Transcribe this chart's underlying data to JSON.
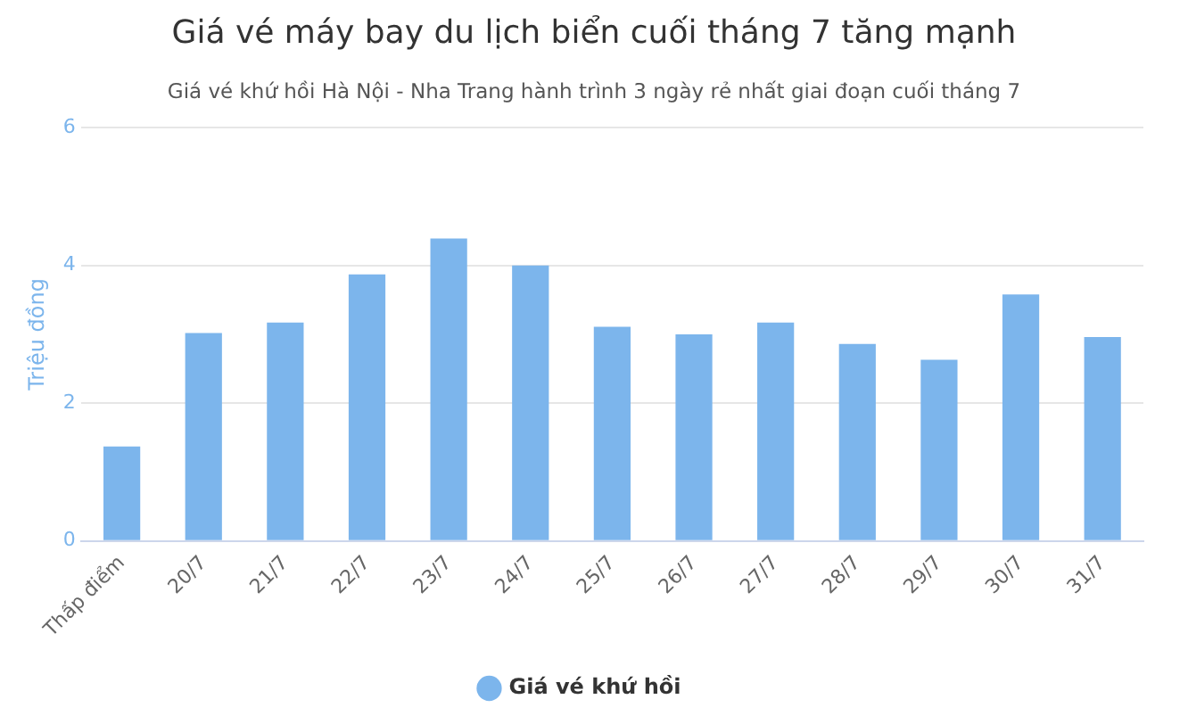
{
  "chart_data": {
    "type": "bar",
    "title": "Giá vé máy bay du lịch biển cuối tháng 7 tăng mạnh",
    "subtitle": "Giá vé khứ hồi Hà Nội - Nha Trang hành trình 3 ngày rẻ nhất giai đoạn cuối tháng 7",
    "ylabel": "Triệu đồng",
    "categories": [
      "Thấp điểm",
      "20/7",
      "21/7",
      "22/7",
      "23/7",
      "24/7",
      "25/7",
      "26/7",
      "27/7",
      "28/7",
      "29/7",
      "30/7",
      "31/7"
    ],
    "series": [
      {
        "name": "Giá vé khứ hồi",
        "color": "#7cb5ec",
        "values": [
          1.37,
          3.02,
          3.17,
          3.87,
          4.39,
          4.0,
          3.11,
          3.0,
          3.17,
          2.86,
          2.63,
          3.58,
          2.96
        ]
      }
    ],
    "ylim": [
      0,
      6
    ],
    "yticks": [
      0,
      2,
      4,
      6
    ],
    "grid": "y",
    "legend": "bottom"
  }
}
